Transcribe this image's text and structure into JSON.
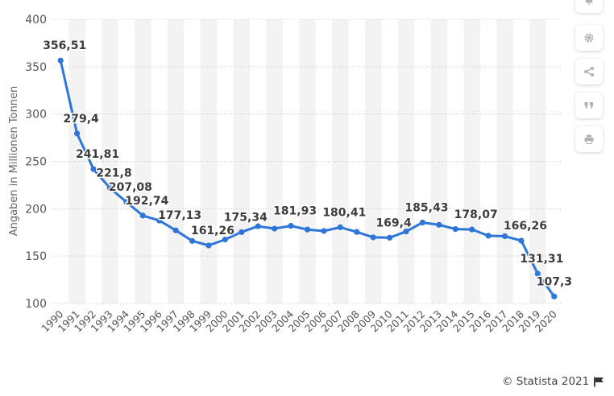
{
  "chart_data": {
    "type": "line",
    "ylabel": "Angaben in Millionen Tonnen",
    "xlabel": "",
    "title": "",
    "ylim": [
      100,
      400
    ],
    "yticks": [
      100,
      150,
      200,
      250,
      300,
      350,
      400
    ],
    "x": [
      "1990",
      "1991",
      "1992",
      "1993",
      "1994",
      "1995",
      "1996",
      "1997",
      "1998",
      "1999",
      "2000",
      "2001",
      "2002",
      "2003",
      "2004",
      "2005",
      "2006",
      "2007",
      "2008",
      "2009",
      "2010",
      "2011",
      "2012",
      "2013",
      "2014",
      "2015",
      "2016",
      "2017",
      "2018",
      "2019",
      "2020"
    ],
    "series": [
      {
        "values": [
          356.51,
          279.4,
          241.81,
          221.8,
          207.08,
          192.74,
          187.5,
          177.13,
          166.0,
          161.26,
          167.5,
          175.34,
          181.5,
          179.0,
          181.93,
          178.0,
          176.5,
          180.41,
          175.5,
          169.8,
          169.4,
          176.0,
          185.43,
          183.0,
          178.5,
          178.07,
          171.5,
          171.0,
          166.26,
          131.31,
          107.38
        ]
      }
    ],
    "data_labels": [
      {
        "index": 0,
        "text": "356,51"
      },
      {
        "index": 1,
        "text": "279,4"
      },
      {
        "index": 2,
        "text": "241,81"
      },
      {
        "index": 3,
        "text": "221,8"
      },
      {
        "index": 4,
        "text": "207,08"
      },
      {
        "index": 5,
        "text": "192,74"
      },
      {
        "index": 7,
        "text": "177,13"
      },
      {
        "index": 9,
        "text": "161,26"
      },
      {
        "index": 11,
        "text": "175,34"
      },
      {
        "index": 14,
        "text": "181,93"
      },
      {
        "index": 17,
        "text": "180,41"
      },
      {
        "index": 20,
        "text": "169,4"
      },
      {
        "index": 22,
        "text": "185,43"
      },
      {
        "index": 25,
        "text": "178,07"
      },
      {
        "index": 28,
        "text": "166,26"
      },
      {
        "index": 29,
        "text": "131,31"
      },
      {
        "index": 30,
        "text": "107,38"
      }
    ],
    "grid": true,
    "alternating_column_bands": true,
    "colors": {
      "line": "#2e75d9",
      "grid": "#c8c8c8",
      "band": "#f3f3f3"
    }
  },
  "credit": {
    "text": "© Statista 2021"
  },
  "toolbar": {
    "buttons": [
      {
        "name": "notification-button",
        "icon": "bell-icon"
      },
      {
        "name": "settings-button",
        "icon": "gear-icon"
      },
      {
        "name": "share-button",
        "icon": "share-icon"
      },
      {
        "name": "cite-button",
        "icon": "quote-icon"
      },
      {
        "name": "print-button",
        "icon": "printer-icon"
      }
    ]
  }
}
